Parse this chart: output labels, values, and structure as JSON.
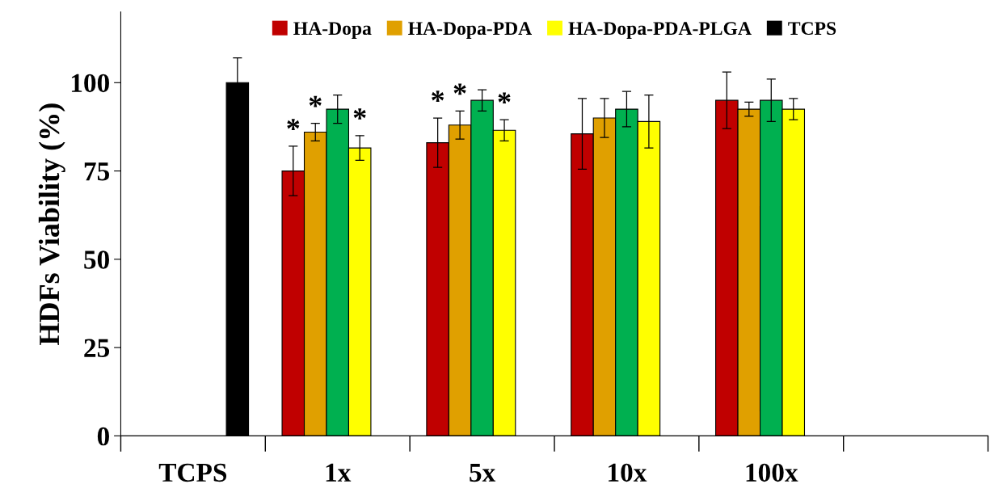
{
  "chart_data": {
    "type": "bar",
    "ylabel": "HDFs Viability (%)",
    "categories": [
      "TCPS",
      "1x",
      "5x",
      "10x",
      "100x",
      null
    ],
    "series": [
      {
        "name": "HA-Dopa",
        "color": "#c00000",
        "values": [
          null,
          75,
          83,
          85.5,
          95,
          null
        ],
        "errors": [
          null,
          7,
          7,
          10,
          8,
          null
        ],
        "value_labels": [
          null,
          "*",
          "*",
          null,
          null,
          null
        ]
      },
      {
        "name": "HA-Dopa-PDA",
        "color": "#e0a000",
        "values": [
          null,
          86,
          88,
          90,
          92.5,
          null
        ],
        "errors": [
          null,
          2.5,
          4,
          5.5,
          2,
          null
        ],
        "value_labels": [
          null,
          "*",
          "*",
          null,
          null,
          null
        ]
      },
      {
        "color": "#00b050",
        "values": [
          null,
          92.5,
          95,
          92.5,
          95,
          null
        ],
        "errors": [
          null,
          4,
          3,
          5,
          6,
          null
        ]
      },
      {
        "name": "HA-Dopa-PDA-PLGA",
        "color": "#ffff00",
        "values": [
          null,
          81.5,
          86.5,
          89,
          92.5,
          null
        ],
        "errors": [
          null,
          3.5,
          3,
          7.5,
          3,
          null
        ],
        "value_labels": [
          null,
          "*",
          "*",
          null,
          null,
          null
        ]
      },
      {
        "name": "TCPS",
        "color": "#000000",
        "values": [
          100,
          null,
          null,
          null,
          null,
          null
        ],
        "errors": [
          7,
          null,
          null,
          null,
          null,
          null
        ]
      }
    ],
    "ylim": [
      0,
      120
    ],
    "yticks": [
      0,
      25,
      50,
      75,
      100
    ],
    "grid": false,
    "legend": "top"
  }
}
